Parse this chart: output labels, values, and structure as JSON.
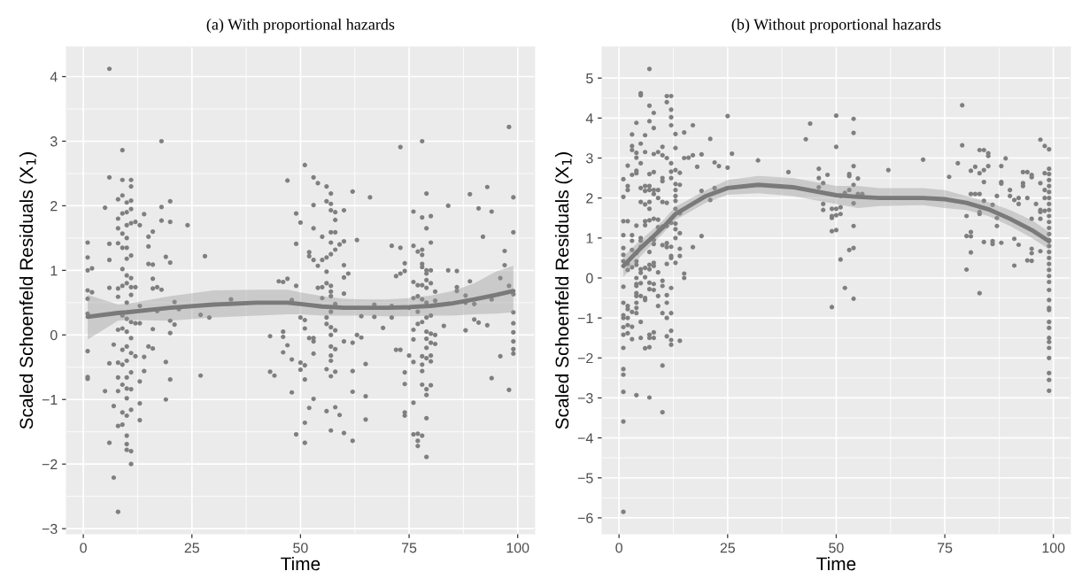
{
  "chart_data": [
    {
      "type": "scatter",
      "title": "(a) With proportional hazards",
      "xlabel": "Time",
      "ylabel": "Scaled Schoenfeld Residuals (X$_{1}$)",
      "xlim": [
        -3.9,
        103.9
      ],
      "xticks": [
        0,
        25,
        50,
        75,
        100
      ],
      "ylim": [
        -3.08,
        4.46
      ],
      "yticks": [
        -3,
        -2,
        -1,
        0,
        1,
        2,
        3,
        4
      ],
      "grid": true,
      "series": [
        {
          "marker": "circle",
          "color": "#7f7f7f",
          "x": [
            6,
            9,
            18,
            6,
            9,
            11,
            11,
            5,
            8,
            9,
            10,
            11,
            9,
            10,
            11,
            8,
            10,
            11,
            12,
            13,
            14,
            18,
            20,
            18,
            20,
            24,
            8,
            9,
            10,
            8,
            9,
            10,
            11,
            15,
            16,
            15,
            1,
            1,
            6,
            6,
            10,
            19,
            20,
            28,
            1,
            2,
            9,
            10,
            11,
            15,
            16,
            16,
            6,
            8,
            9,
            10,
            11,
            12,
            16,
            17,
            18,
            1,
            2,
            1,
            8,
            10,
            11,
            13,
            21,
            22,
            34,
            1,
            9,
            10,
            11,
            12,
            13,
            17,
            20,
            21,
            27,
            29,
            8,
            9,
            10,
            11,
            16,
            20,
            1,
            7,
            9,
            10,
            11,
            12,
            14,
            15,
            16,
            19,
            6,
            8,
            9,
            10,
            11,
            14,
            13,
            1,
            1,
            8,
            10,
            20,
            27,
            5,
            8,
            10,
            11,
            9,
            10,
            13,
            19,
            7,
            9,
            10,
            11,
            13,
            8,
            9,
            10,
            6,
            10,
            10,
            11,
            11,
            7,
            8,
            43,
            46,
            47,
            46,
            46,
            46,
            47,
            43,
            44,
            47,
            51,
            53,
            54,
            56,
            57,
            62,
            66,
            56,
            57,
            53,
            49,
            50,
            57,
            58,
            58,
            60,
            53,
            55,
            57,
            58,
            49,
            57,
            57,
            59,
            60,
            63,
            52,
            52,
            53,
            54,
            55,
            56,
            58,
            60,
            56,
            61,
            60,
            45,
            49,
            54,
            55,
            56,
            57,
            57,
            57,
            60,
            55,
            48,
            58,
            57,
            64,
            67,
            67,
            71,
            71,
            50,
            51,
            56,
            57,
            58,
            51,
            69,
            56,
            63,
            64,
            57,
            52,
            53,
            53,
            53,
            48,
            50,
            51,
            50,
            51,
            57,
            58,
            57,
            57,
            60,
            62,
            56,
            57,
            58,
            62,
            62,
            65,
            65,
            65,
            48,
            53,
            52,
            51,
            49,
            51,
            56,
            58,
            59,
            57,
            60,
            62,
            73,
            78,
            98,
            79,
            93,
            89,
            99,
            84,
            91,
            94,
            76,
            78,
            80,
            79,
            80,
            99,
            92,
            71,
            73,
            76,
            77,
            78,
            78,
            97,
            97,
            74,
            74,
            73,
            72,
            78,
            78,
            79,
            80,
            79,
            79,
            84,
            86,
            76,
            77,
            78,
            80,
            79,
            89,
            86,
            86,
            81,
            96,
            98,
            99,
            76,
            77,
            78,
            79,
            81,
            88,
            88,
            90,
            94,
            75,
            77,
            79,
            80,
            99,
            83,
            78,
            77,
            76,
            79,
            80,
            81,
            88,
            90,
            91,
            93,
            99,
            76,
            79,
            80,
            81,
            79,
            72,
            73,
            75,
            78,
            79,
            80,
            80,
            78,
            76,
            74,
            78,
            99,
            99,
            99,
            99,
            96,
            94,
            98,
            74,
            78,
            79,
            80,
            79,
            76,
            74,
            74,
            79,
            76,
            77,
            78,
            77,
            77,
            79
          ],
          "values": [
            4.12,
            2.86,
            3.0,
            2.44,
            2.4,
            2.4,
            2.3,
            1.97,
            2.1,
            2.16,
            2.05,
            2.08,
            1.88,
            1.9,
            1.95,
            1.8,
            1.7,
            1.73,
            1.75,
            1.7,
            1.87,
            1.98,
            2.07,
            1.77,
            1.75,
            1.7,
            1.65,
            1.57,
            1.5,
            1.42,
            1.35,
            1.35,
            1.23,
            1.52,
            1.6,
            1.37,
            1.43,
            1.2,
            1.41,
            1.16,
            1.18,
            1.21,
            1.12,
            1.22,
            1.0,
            1.03,
            1.02,
            0.92,
            0.88,
            1.1,
            1.09,
            0.87,
            0.73,
            0.72,
            0.76,
            0.8,
            0.74,
            0.74,
            0.72,
            0.74,
            0.7,
            0.69,
            0.66,
            0.56,
            0.59,
            0.5,
            0.62,
            0.45,
            0.51,
            0.4,
            0.55,
            0.33,
            0.3,
            0.25,
            0.2,
            0.18,
            0.18,
            0.37,
            0.22,
            0.16,
            0.31,
            0.27,
            0.08,
            0.1,
            0.05,
            -0.05,
            0.09,
            0.03,
            -0.25,
            -0.15,
            -0.23,
            -0.18,
            -0.28,
            -0.33,
            -0.34,
            -0.18,
            -0.21,
            -0.42,
            -0.44,
            -0.43,
            -0.46,
            -0.4,
            -0.58,
            -0.56,
            -0.72,
            -0.65,
            -0.68,
            -0.66,
            -0.66,
            -0.69,
            -0.63,
            -0.87,
            -0.87,
            -0.83,
            -0.84,
            -0.77,
            -0.98,
            -1.06,
            -1.0,
            -1.1,
            -1.2,
            -1.25,
            -1.16,
            -1.32,
            -1.41,
            -1.39,
            -1.56,
            -1.67,
            -1.69,
            -1.78,
            -1.8,
            -2.0,
            -2.21,
            -2.74,
            -0.02,
            0.82,
            0.87,
            0.05,
            -0.03,
            -0.27,
            -0.16,
            -0.57,
            -0.63,
            2.39,
            2.63,
            2.44,
            2.35,
            2.3,
            2.19,
            2.22,
            2.13,
            2.07,
            2.03,
            2.01,
            1.88,
            1.74,
            1.93,
            1.9,
            1.78,
            1.93,
            1.65,
            1.52,
            1.59,
            1.59,
            1.41,
            1.43,
            1.25,
            1.4,
            1.45,
            1.47,
            1.28,
            1.22,
            1.16,
            1.07,
            1.16,
            1.2,
            1.32,
            1.08,
            0.98,
            0.95,
            0.89,
            0.83,
            0.76,
            0.73,
            0.74,
            0.8,
            0.76,
            0.67,
            0.6,
            0.64,
            0.57,
            0.54,
            0.48,
            0.36,
            0.29,
            0.47,
            0.28,
            0.45,
            0.27,
            0.27,
            0.23,
            0.17,
            0.12,
            0.07,
            0.1,
            0.11,
            0.27,
            0.0,
            -0.04,
            0.0,
            -0.05,
            -0.1,
            -0.05,
            -0.29,
            -0.38,
            -0.43,
            -0.47,
            -0.54,
            -0.69,
            -0.18,
            -0.22,
            -0.32,
            -0.4,
            -0.1,
            -0.12,
            -0.53,
            -0.64,
            -0.57,
            -0.56,
            -0.88,
            -0.45,
            -0.95,
            -1.31,
            -0.89,
            -0.99,
            -1.13,
            -1.36,
            -1.54,
            -1.67,
            -1.18,
            -1.12,
            -1.24,
            -1.48,
            -1.52,
            -1.64,
            2.91,
            3.0,
            3.22,
            2.19,
            2.29,
            2.18,
            2.13,
            2.0,
            1.96,
            1.91,
            1.91,
            1.82,
            1.84,
            1.65,
            1.43,
            1.59,
            1.52,
            1.38,
            1.35,
            1.38,
            1.29,
            1.24,
            1.32,
            1.3,
            1.08,
            1.11,
            0.99,
            0.95,
            0.91,
            1.1,
            1.05,
            1.0,
            1.0,
            0.95,
            0.85,
            1.0,
            0.99,
            0.82,
            0.77,
            0.77,
            0.8,
            0.73,
            0.83,
            0.74,
            0.68,
            0.67,
            0.88,
            0.76,
            0.63,
            0.57,
            0.6,
            0.55,
            0.5,
            0.53,
            0.61,
            0.5,
            0.48,
            0.55,
            0.42,
            0.36,
            0.27,
            0.3,
            0.35,
            0.14,
            0.2,
            0.17,
            0.08,
            0.05,
            0.02,
            0.0,
            0.07,
            0.24,
            0.19,
            0.15,
            0.18,
            -0.07,
            -0.06,
            -0.12,
            -0.14,
            -0.2,
            -0.23,
            -0.23,
            -0.32,
            -0.33,
            -0.36,
            -0.32,
            -0.41,
            -0.46,
            -0.42,
            -0.58,
            -0.56,
            0.04,
            -0.1,
            -0.22,
            -0.29,
            -0.33,
            -0.67,
            -0.85,
            -0.76,
            -0.77,
            -0.84,
            -0.78,
            -0.93,
            -1.05,
            -1.2,
            -1.25,
            -1.29,
            -1.54,
            -1.53,
            -1.56,
            -1.64,
            -1.72,
            -1.89
          ]
        },
        {
          "type": "line",
          "color": "#7a7a7a",
          "x": [
            1,
            8,
            10,
            20,
            30,
            40,
            47,
            50,
            55,
            60,
            65,
            70,
            75,
            80,
            85,
            90,
            95,
            99
          ],
          "values": [
            0.28,
            0.34,
            0.35,
            0.42,
            0.47,
            0.5,
            0.5,
            0.48,
            0.44,
            0.42,
            0.42,
            0.42,
            0.43,
            0.45,
            0.49,
            0.55,
            0.62,
            0.68
          ],
          "lower": [
            -0.07,
            0.22,
            0.23,
            0.22,
            0.27,
            0.3,
            0.32,
            0.32,
            0.3,
            0.3,
            0.3,
            0.29,
            0.29,
            0.3,
            0.3,
            0.32,
            0.33,
            0.35
          ],
          "upper": [
            0.62,
            0.47,
            0.48,
            0.6,
            0.69,
            0.7,
            0.7,
            0.66,
            0.6,
            0.56,
            0.55,
            0.55,
            0.57,
            0.61,
            0.68,
            0.8,
            0.98,
            1.07
          ]
        }
      ]
    },
    {
      "type": "scatter",
      "title": "(b) Without proportional hazards",
      "xlabel": "Time",
      "ylabel": "Scaled Schoenfeld Residuals (X$_{1}$)",
      "xlim": [
        -3.9,
        103.9
      ],
      "xticks": [
        0,
        25,
        50,
        75,
        100
      ],
      "ylim": [
        -6.4,
        5.78
      ],
      "yticks": [
        -6,
        -5,
        -4,
        -3,
        -2,
        -1,
        0,
        1,
        2,
        3,
        4,
        5
      ],
      "grid": true,
      "series": [
        {
          "marker": "circle",
          "color": "#7f7f7f",
          "x": [
            7,
            5,
            5,
            11,
            12,
            11,
            7,
            12,
            8,
            12,
            7,
            4,
            25,
            17,
            12,
            8,
            3,
            6,
            13,
            15,
            21,
            5,
            3,
            3,
            10,
            13,
            4,
            6,
            9,
            8,
            10,
            11,
            4,
            15,
            16,
            17,
            19,
            26,
            32,
            2,
            5,
            12,
            22,
            23,
            18,
            25,
            4,
            4,
            3,
            7,
            8,
            13,
            14,
            12,
            1,
            10,
            10,
            12,
            13,
            14,
            2,
            2,
            5,
            6,
            6,
            7,
            7,
            8,
            8,
            9,
            9,
            1,
            5,
            6,
            7,
            7,
            10,
            11,
            13,
            13,
            13,
            13,
            19,
            21,
            22,
            1,
            2,
            4,
            6,
            6,
            7,
            8,
            9,
            9,
            10,
            11,
            12,
            13,
            13,
            14,
            1,
            3,
            3,
            5,
            5,
            8,
            8,
            9,
            10,
            11,
            11,
            12,
            13,
            14,
            19,
            17,
            1,
            3,
            4,
            5,
            7,
            12,
            12,
            14,
            14,
            1,
            1,
            2,
            3,
            4,
            4,
            6,
            7,
            8,
            8,
            11,
            13,
            2,
            5,
            5,
            6,
            7,
            9,
            15,
            15,
            1,
            4,
            4,
            4,
            5,
            7,
            8,
            10,
            10,
            12,
            4,
            4,
            5,
            6,
            7,
            8,
            9,
            11,
            1,
            2,
            4,
            4,
            6,
            9,
            11,
            1,
            1,
            1,
            1,
            2,
            2,
            2,
            2,
            3,
            3,
            3,
            4,
            5,
            5,
            6,
            7,
            7,
            7,
            8,
            8,
            10,
            11,
            12,
            11,
            12,
            12,
            12,
            14,
            1,
            1,
            1,
            1,
            10,
            4,
            7,
            10,
            1,
            1,
            39,
            43,
            44,
            46,
            46,
            46,
            50,
            54,
            54,
            50,
            79,
            79,
            78,
            70,
            62,
            76,
            83,
            84,
            85,
            85,
            89,
            88,
            85,
            82,
            81,
            83,
            84,
            84,
            97,
            98,
            99,
            53,
            54,
            55,
            47,
            48,
            53,
            54,
            53,
            52,
            51,
            55,
            56,
            47,
            47,
            49,
            50,
            51,
            49,
            49,
            50,
            51,
            49,
            50,
            54,
            54,
            54,
            53,
            51,
            52,
            54,
            49,
            81,
            82,
            83,
            84,
            86,
            83,
            83,
            80,
            87,
            88,
            88,
            90,
            90,
            91,
            92,
            92,
            93,
            93,
            93,
            94,
            95,
            95,
            94,
            96,
            97,
            97,
            95,
            97,
            87,
            98,
            98,
            97,
            98,
            98,
            87,
            81,
            81,
            80,
            84,
            86,
            86,
            88,
            91,
            92,
            94,
            95,
            95,
            95,
            97,
            91,
            81,
            80,
            83,
            99,
            99,
            99,
            99,
            99,
            99,
            99,
            99,
            99,
            99,
            99,
            99,
            99,
            99,
            99,
            99,
            99,
            99,
            99,
            99,
            99,
            99,
            99,
            99,
            99,
            99,
            99,
            99,
            99,
            99,
            99,
            99,
            99
          ],
          "values": [
            5.23,
            4.62,
            4.57,
            4.55,
            4.55,
            4.4,
            4.31,
            4.21,
            4.13,
            4.02,
            3.92,
            3.88,
            4.05,
            3.82,
            3.82,
            3.75,
            3.59,
            3.57,
            3.6,
            3.64,
            3.48,
            3.36,
            3.3,
            3.2,
            3.28,
            3.25,
            3.13,
            3.15,
            3.15,
            3.1,
            3.07,
            3.0,
            3.01,
            3.0,
            3.01,
            3.07,
            3.09,
            3.11,
            2.94,
            2.81,
            2.87,
            2.87,
            2.89,
            2.8,
            2.78,
            2.76,
            2.62,
            2.68,
            2.58,
            2.6,
            2.65,
            2.7,
            2.63,
            2.66,
            2.47,
            2.5,
            2.42,
            2.5,
            2.35,
            2.33,
            2.3,
            2.2,
            2.25,
            2.3,
            2.18,
            2.3,
            2.2,
            2.2,
            2.1,
            2.2,
            2.0,
            2.03,
            1.9,
            1.84,
            1.9,
            1.73,
            1.9,
            1.88,
            2.2,
            2.05,
            1.93,
            1.73,
            2.18,
            1.95,
            2.25,
            1.42,
            1.42,
            1.31,
            1.42,
            1.32,
            1.44,
            1.48,
            1.46,
            1.27,
            1.29,
            1.3,
            1.38,
            1.36,
            1.22,
            1.62,
            1.07,
            1.07,
            0.93,
            1.0,
            0.93,
            0.95,
            0.85,
            1.16,
            0.82,
            0.77,
            0.87,
            0.78,
            1.0,
            1.12,
            1.05,
            0.77,
            0.75,
            0.7,
            0.62,
            0.78,
            0.65,
            0.5,
            0.55,
            0.55,
            0.73,
            0.58,
            0.42,
            0.35,
            0.27,
            0.42,
            0.33,
            0.25,
            0.33,
            0.38,
            0.3,
            0.35,
            0.38,
            0.2,
            0.13,
            0.22,
            0.02,
            0.22,
            0.14,
            0.11,
            0.0,
            -0.22,
            0.0,
            -0.15,
            -0.2,
            -0.13,
            -0.12,
            -0.15,
            -0.07,
            -0.2,
            -0.25,
            -0.38,
            -0.45,
            -0.45,
            -0.5,
            -0.28,
            -0.3,
            -0.45,
            -0.43,
            -0.62,
            -0.7,
            -0.62,
            -0.75,
            -0.55,
            -0.7,
            -0.62,
            -0.93,
            -1.0,
            -1.23,
            -1.42,
            -0.78,
            -1.0,
            -1.18,
            -1.38,
            -0.85,
            -1.22,
            -1.53,
            -0.88,
            -1.1,
            -1.5,
            -1.76,
            -1.42,
            -1.5,
            -1.73,
            -1.36,
            -1.5,
            -0.88,
            -1.0,
            -0.88,
            -1.46,
            -1.32,
            -1.55,
            -1.67,
            -1.57,
            -1.75,
            -2.28,
            -2.42,
            -2.85,
            -2.19,
            -2.93,
            -2.99,
            -3.36,
            -3.59,
            -5.85,
            2.65,
            3.47,
            3.86,
            2.73,
            2.5,
            2.27,
            4.06,
            3.98,
            3.63,
            3.28,
            4.32,
            3.32,
            2.87,
            2.96,
            2.7,
            2.53,
            3.2,
            3.2,
            3.12,
            3.05,
            2.99,
            2.8,
            2.8,
            2.78,
            2.68,
            2.62,
            2.7,
            2.4,
            3.46,
            3.3,
            3.22,
            2.6,
            2.8,
            2.49,
            2.37,
            2.58,
            2.55,
            2.33,
            2.2,
            2.13,
            2.05,
            2.1,
            2.1,
            1.85,
            1.7,
            1.73,
            1.73,
            1.77,
            1.55,
            1.5,
            1.57,
            1.6,
            1.17,
            1.2,
            1.3,
            1.87,
            0.75,
            0.7,
            0.46,
            -0.25,
            -0.52,
            -0.73,
            2.1,
            2.1,
            2.1,
            1.93,
            1.83,
            1.65,
            1.6,
            1.55,
            2.05,
            2.4,
            2.36,
            2.2,
            2.05,
            1.95,
            2.0,
            1.85,
            2.37,
            2.3,
            2.65,
            2.65,
            2.58,
            2.52,
            2.0,
            1.85,
            1.7,
            1.65,
            1.48,
            1.48,
            1.5,
            2.62,
            2.0,
            2.37,
            2.2,
            1.68,
            1.3,
            1.15,
            1.04,
            1.05,
            0.9,
            0.92,
            0.85,
            0.88,
            0.98,
            0.83,
            0.44,
            0.73,
            0.62,
            0.43,
            0.67,
            0.31,
            0.64,
            0.21,
            -0.38,
            2.73,
            2.6,
            2.45,
            2.3,
            2.15,
            2.0,
            1.85,
            1.7,
            1.55,
            1.4,
            1.25,
            1.1,
            0.95,
            0.8,
            0.65,
            0.5,
            0.35,
            0.2,
            0.05,
            -0.1,
            -0.3,
            -0.55,
            -0.75,
            -0.8,
            -1.1,
            -1.25,
            -1.5,
            -1.6,
            -1.75,
            -2.0,
            -2.38,
            -2.55,
            -2.82
          ]
        },
        {
          "type": "line",
          "color": "#7a7a7a",
          "x": [
            1,
            5,
            10,
            13,
            20,
            25,
            32,
            40,
            50,
            55,
            60,
            70,
            75,
            80,
            85,
            90,
            95,
            99
          ],
          "values": [
            0.3,
            0.75,
            1.25,
            1.6,
            2.05,
            2.25,
            2.33,
            2.27,
            2.07,
            2.03,
            2.0,
            2.0,
            1.97,
            1.88,
            1.72,
            1.48,
            1.2,
            0.92
          ],
          "lower": [
            0.02,
            0.55,
            1.1,
            1.45,
            1.88,
            2.08,
            2.12,
            2.05,
            1.85,
            1.75,
            1.8,
            1.82,
            1.75,
            1.7,
            1.55,
            1.3,
            1.0,
            0.72
          ],
          "upper": [
            0.55,
            0.95,
            1.42,
            1.78,
            2.2,
            2.45,
            2.55,
            2.5,
            2.3,
            2.3,
            2.25,
            2.25,
            2.2,
            2.05,
            1.9,
            1.7,
            1.45,
            1.15
          ]
        }
      ]
    }
  ]
}
